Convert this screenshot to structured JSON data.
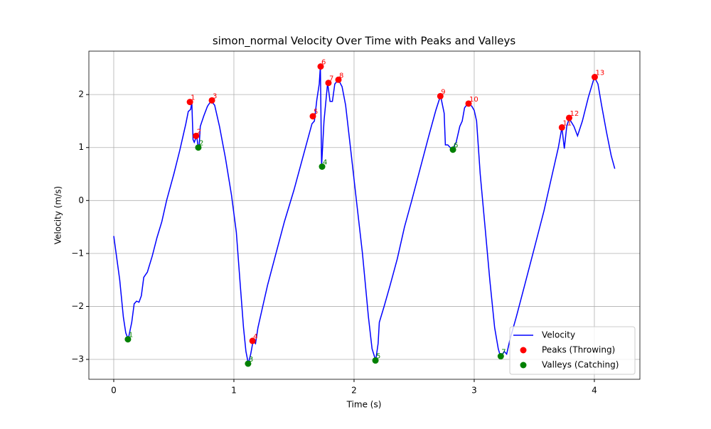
{
  "chart_data": {
    "type": "line",
    "title": "simon_normal Velocity Over Time with Peaks and Valleys",
    "x_label": "Time (s)",
    "y_label": "Velocity (m/s)",
    "xlim": [
      -0.207,
      4.379
    ],
    "ylim": [
      -3.375,
      2.82
    ],
    "xticks": [
      0,
      1,
      2,
      3,
      4
    ],
    "yticks": [
      {
        "value": -3,
        "label": "−3"
      },
      {
        "value": -2,
        "label": "−2"
      },
      {
        "value": -1,
        "label": "−1"
      },
      0,
      1,
      2
    ],
    "grid": true,
    "legend_position": "lower right",
    "series": [
      {
        "name": "Velocity",
        "type": "line",
        "color": "#0000ff",
        "x": [
          0,
          0.05,
          0.08,
          0.1,
          0.12,
          0.15,
          0.17,
          0.19,
          0.21,
          0.23,
          0.25,
          0.28,
          0.32,
          0.36,
          0.4,
          0.44,
          0.5,
          0.55,
          0.6,
          0.62,
          0.64,
          0.65,
          0.66,
          0.67,
          0.69,
          0.7,
          0.71,
          0.72,
          0.75,
          0.78,
          0.81,
          0.84,
          0.88,
          0.93,
          0.98,
          1.02,
          1.05,
          1.08,
          1.1,
          1.12,
          1.14,
          1.16,
          1.18,
          1.2,
          1.24,
          1.28,
          1.35,
          1.42,
          1.5,
          1.56,
          1.62,
          1.65,
          1.67,
          1.69,
          1.71,
          1.72,
          1.73,
          1.75,
          1.78,
          1.8,
          1.82,
          1.84,
          1.87,
          1.9,
          1.93,
          1.97,
          2.02,
          2.07,
          2.12,
          2.15,
          2.18,
          2.2,
          2.21,
          2.25,
          2.3,
          2.36,
          2.42,
          2.48,
          2.55,
          2.62,
          2.68,
          2.72,
          2.75,
          2.76,
          2.78,
          2.8,
          2.82,
          2.85,
          2.88,
          2.9,
          2.92,
          2.95,
          2.98,
          3.0,
          3.02,
          3.05,
          3.09,
          3.13,
          3.17,
          3.2,
          3.22,
          3.25,
          3.27,
          3.3,
          3.35,
          3.42,
          3.5,
          3.58,
          3.64,
          3.7,
          3.73,
          3.75,
          3.77,
          3.79,
          3.83,
          3.86,
          3.9,
          3.95,
          4.0,
          4.03,
          4.06,
          4.1,
          4.14,
          4.17
        ],
        "values": [
          -0.67,
          -1.5,
          -2.2,
          -2.5,
          -2.62,
          -2.3,
          -1.95,
          -1.9,
          -1.92,
          -1.8,
          -1.45,
          -1.35,
          -1.05,
          -0.7,
          -0.4,
          0.0,
          0.5,
          0.95,
          1.45,
          1.68,
          1.72,
          1.85,
          1.15,
          1.1,
          1.22,
          1.05,
          1.0,
          1.4,
          1.6,
          1.78,
          1.88,
          1.8,
          1.4,
          0.8,
          0.1,
          -0.6,
          -1.5,
          -2.4,
          -2.85,
          -3.08,
          -2.9,
          -2.65,
          -2.7,
          -2.4,
          -2.0,
          -1.6,
          -1.0,
          -0.4,
          0.2,
          0.7,
          1.2,
          1.45,
          1.5,
          1.9,
          2.2,
          2.53,
          0.65,
          1.5,
          2.22,
          1.87,
          1.87,
          2.2,
          2.28,
          2.15,
          1.8,
          1.0,
          0.0,
          -1.0,
          -2.2,
          -2.8,
          -3.02,
          -2.7,
          -2.3,
          -2.0,
          -1.6,
          -1.1,
          -0.5,
          0.0,
          0.6,
          1.2,
          1.7,
          1.98,
          1.65,
          1.05,
          1.05,
          1.0,
          0.97,
          1.1,
          1.4,
          1.5,
          1.75,
          1.84,
          1.78,
          1.7,
          1.5,
          0.5,
          -0.5,
          -1.5,
          -2.4,
          -2.8,
          -2.95,
          -2.85,
          -2.9,
          -2.6,
          -2.2,
          -1.6,
          -0.9,
          -0.2,
          0.4,
          1.0,
          1.38,
          0.98,
          1.4,
          1.55,
          1.4,
          1.22,
          1.5,
          1.95,
          2.33,
          2.2,
          1.8,
          1.3,
          0.85,
          0.6
        ]
      },
      {
        "name": "Peaks (Throwing)",
        "type": "scatter",
        "color": "#ff0000",
        "x": [
          0.634,
          0.685,
          0.817,
          1.155,
          1.657,
          1.722,
          1.787,
          1.87,
          2.718,
          2.953,
          3.73,
          3.79,
          4.003
        ],
        "values": [
          1.86,
          1.22,
          1.89,
          -2.65,
          1.59,
          2.53,
          2.22,
          2.28,
          1.97,
          1.83,
          1.38,
          1.56,
          2.33
        ],
        "point_labels": [
          "1",
          "2",
          "3",
          "4",
          "5",
          "6",
          "7",
          "8",
          "9",
          "10",
          "11",
          "12",
          "13"
        ]
      },
      {
        "name": "Valleys (Catching)",
        "type": "scatter",
        "color": "#008000",
        "x": [
          0.118,
          0.704,
          1.118,
          1.734,
          2.178,
          2.823,
          3.221
        ],
        "values": [
          -2.62,
          1.0,
          -3.08,
          0.64,
          -3.02,
          0.96,
          -2.94
        ],
        "point_labels": [
          "1",
          "2",
          "3",
          "4",
          "5",
          "6",
          "7"
        ]
      }
    ]
  }
}
